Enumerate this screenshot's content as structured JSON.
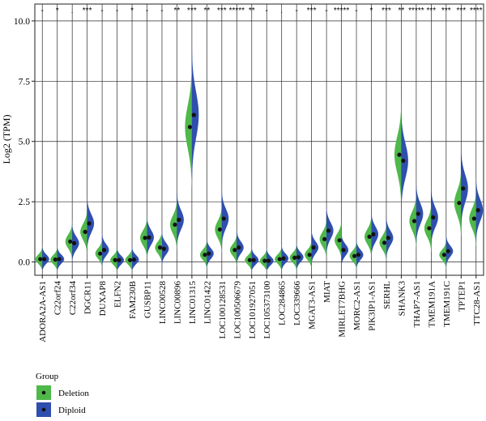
{
  "chart_data": {
    "type": "violin",
    "title": "",
    "xlabel": "",
    "ylabel": "Log2 (TPM)",
    "ylim": [
      -0.55,
      10.7
    ],
    "y_ticks": [
      "0.0",
      "2.5",
      "5.0",
      "7.5",
      "10.0"
    ],
    "grid": true,
    "legend_position": "bottom-left",
    "legend": {
      "title": "Group",
      "items": [
        {
          "label": "Deletion",
          "color": "#4fb84a"
        },
        {
          "label": "Diploid",
          "color": "#2f4fae"
        }
      ]
    },
    "categories": [
      "ADORA2A-AS1",
      "C22orf24",
      "C22orf34",
      "DGCR11",
      "DUXAP8",
      "ELFN2",
      "FAM230B",
      "GUSBP11",
      "LINC00528",
      "LINC00896",
      "LINC01315",
      "LINC01422",
      "LOC100128531",
      "LOC100506679",
      "LOC101927051",
      "LOC105373100",
      "LOC284865",
      "LOC339666",
      "MGAT3-AS1",
      "MIAT",
      "MIRLET7BHG",
      "MORC2-AS1",
      "PIK3IP1-AS1",
      "SERHL",
      "SHANK3",
      "THAP7-AS1",
      "TMEM191A",
      "TMEM191C",
      "TPTEP1",
      "TTC28-AS1"
    ],
    "significance": [
      "-",
      "*",
      ".",
      "***",
      "-",
      "-",
      "*",
      "-",
      "-",
      "**",
      "***",
      "**",
      "***",
      "*****",
      "**",
      "-",
      ".",
      "-",
      "***",
      "-",
      "*****",
      "-",
      "*",
      "***",
      "**",
      "*****",
      "***",
      "***",
      "***",
      "****"
    ],
    "series": [
      {
        "name": "Deletion",
        "median": [
          0.12,
          0.1,
          0.85,
          1.25,
          0.35,
          0.08,
          0.08,
          1.0,
          0.6,
          1.55,
          5.6,
          0.3,
          1.35,
          0.5,
          0.08,
          0.05,
          0.12,
          0.18,
          0.3,
          0.95,
          0.9,
          0.25,
          1.05,
          0.8,
          4.45,
          1.7,
          1.4,
          0.3,
          2.45,
          1.8
        ]
      },
      {
        "name": "Diploid",
        "median": [
          0.12,
          0.12,
          0.78,
          1.6,
          0.5,
          0.08,
          0.1,
          1.02,
          0.55,
          1.75,
          6.1,
          0.35,
          1.8,
          0.6,
          0.08,
          0.05,
          0.15,
          0.2,
          0.6,
          1.3,
          0.5,
          0.3,
          1.15,
          1.0,
          4.2,
          2.0,
          1.85,
          0.45,
          3.05,
          2.15
        ]
      }
    ]
  }
}
